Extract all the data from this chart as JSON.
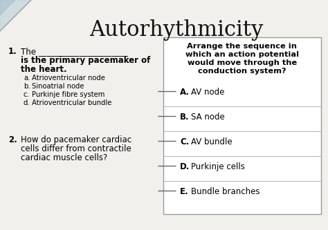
{
  "title": "Autorhythmicity",
  "bg_color": "#e8e8e8",
  "paper_color": "#f2f0ed",
  "box_color": "#ffffff",
  "title_fontsize": 22,
  "body_fontsize": 8.5,
  "q1_number": "1.",
  "q1_line1": "The ______________________",
  "q1_line2": "is the primary pacemaker of",
  "q1_line3": "the heart.",
  "q1_options": [
    [
      "a.",
      "Atrioventricular node"
    ],
    [
      "b.",
      "Sinoatrial node"
    ],
    [
      "c.",
      "Purkinje fibre system"
    ],
    [
      "d.",
      "Atrioventricular bundle"
    ]
  ],
  "q2_number": "2.",
  "q2_line1": "How do pacemaker cardiac",
  "q2_line2": "cells differ from contractile",
  "q2_line3": "cardiac muscle cells?",
  "box_title_lines": [
    "Arrange the sequence in",
    "which an action potential",
    "would move through the",
    "conduction system?"
  ],
  "box_options": [
    [
      "A.",
      "AV node"
    ],
    [
      "B.",
      "SA node"
    ],
    [
      "C.",
      "AV bundle"
    ],
    [
      "D.",
      "Purkinje cells"
    ],
    [
      "E.",
      "Bundle branches"
    ]
  ],
  "corner_color": "#9ab8cc",
  "separator_color": "#aaaaaa",
  "box_edge_color": "#999999",
  "line_color": "#666666"
}
